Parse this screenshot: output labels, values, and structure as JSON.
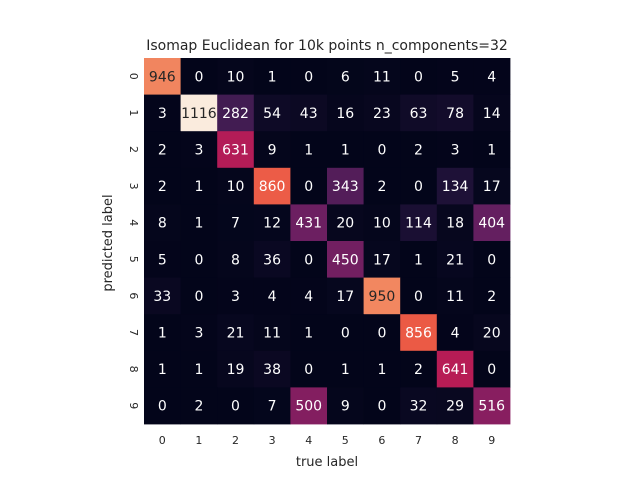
{
  "chart_data": {
    "type": "heatmap",
    "title": "Isomap Euclidean for 10k points n_components=32",
    "xlabel": "true label",
    "ylabel": "predicted label",
    "x_ticks": [
      "0",
      "1",
      "2",
      "3",
      "4",
      "5",
      "6",
      "7",
      "8",
      "9"
    ],
    "y_ticks": [
      "0",
      "1",
      "2",
      "3",
      "4",
      "5",
      "6",
      "7",
      "8",
      "9"
    ],
    "colorbar": false,
    "vmin": 0,
    "vmax": 1116,
    "values": [
      [
        946,
        0,
        10,
        1,
        0,
        6,
        11,
        0,
        5,
        4
      ],
      [
        3,
        1116,
        282,
        54,
        43,
        16,
        23,
        63,
        78,
        14
      ],
      [
        2,
        3,
        631,
        9,
        1,
        1,
        0,
        2,
        3,
        1
      ],
      [
        2,
        1,
        10,
        860,
        0,
        343,
        2,
        0,
        134,
        17
      ],
      [
        8,
        1,
        7,
        12,
        431,
        20,
        10,
        114,
        18,
        404
      ],
      [
        5,
        0,
        8,
        36,
        0,
        450,
        17,
        1,
        21,
        0
      ],
      [
        33,
        0,
        3,
        4,
        4,
        17,
        950,
        0,
        11,
        2
      ],
      [
        1,
        3,
        21,
        11,
        1,
        0,
        0,
        856,
        4,
        20
      ],
      [
        1,
        1,
        19,
        38,
        0,
        1,
        1,
        2,
        641,
        0
      ],
      [
        0,
        2,
        0,
        7,
        500,
        9,
        0,
        32,
        29,
        516
      ]
    ]
  }
}
